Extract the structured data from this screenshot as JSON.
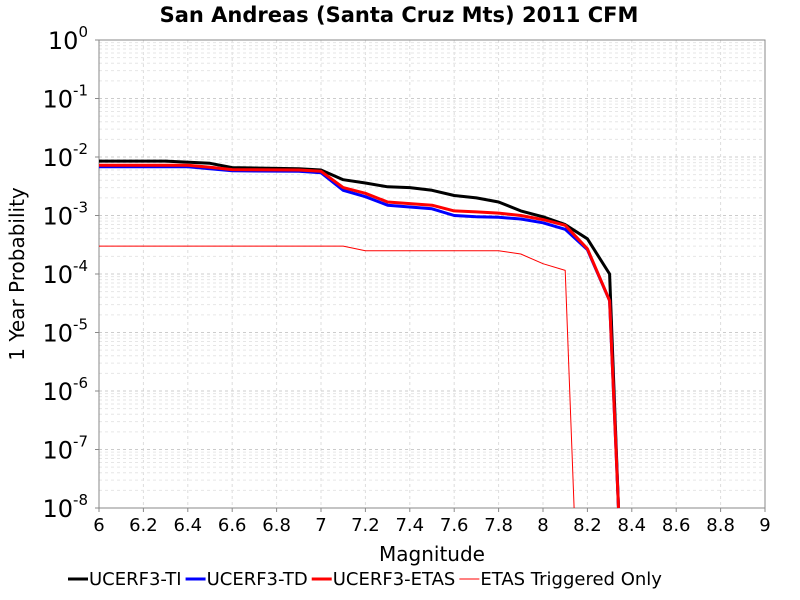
{
  "chart_data": {
    "type": "line",
    "title": "San Andreas (Santa Cruz Mts) 2011 CFM",
    "xlabel": "Magnitude",
    "ylabel": "1 Year Probability",
    "xlim": [
      6,
      9
    ],
    "ylim": [
      1e-08,
      1
    ],
    "y_scale": "log",
    "grid": true,
    "legend_position": "bottom",
    "x_ticks": [
      "6",
      "6.2",
      "6.4",
      "6.6",
      "6.8",
      "7",
      "7.2",
      "7.4",
      "7.6",
      "7.8",
      "8",
      "8.2",
      "8.4",
      "8.6",
      "8.8",
      "9"
    ],
    "y_ticks": [
      {
        "base": "10",
        "exp": "0"
      },
      {
        "base": "10",
        "exp": "-1"
      },
      {
        "base": "10",
        "exp": "-2"
      },
      {
        "base": "10",
        "exp": "-3"
      },
      {
        "base": "10",
        "exp": "-4"
      },
      {
        "base": "10",
        "exp": "-5"
      },
      {
        "base": "10",
        "exp": "-6"
      },
      {
        "base": "10",
        "exp": "-7"
      },
      {
        "base": "10",
        "exp": "-8"
      }
    ],
    "series": [
      {
        "name": "UCERF3-TI",
        "color": "#000000",
        "points": [
          [
            6.0,
            0.0085
          ],
          [
            6.3,
            0.0085
          ],
          [
            6.5,
            0.0078
          ],
          [
            6.6,
            0.0066
          ],
          [
            6.9,
            0.0063
          ],
          [
            7.0,
            0.006
          ],
          [
            7.1,
            0.0041
          ],
          [
            7.2,
            0.0036
          ],
          [
            7.3,
            0.0031
          ],
          [
            7.4,
            0.003
          ],
          [
            7.5,
            0.0027
          ],
          [
            7.6,
            0.0022
          ],
          [
            7.7,
            0.002
          ],
          [
            7.8,
            0.0017
          ],
          [
            7.9,
            0.0012
          ],
          [
            8.0,
            0.00095
          ],
          [
            8.1,
            0.0007
          ],
          [
            8.2,
            0.0004
          ],
          [
            8.3,
            0.0001
          ],
          [
            8.34,
            1e-08
          ]
        ]
      },
      {
        "name": "UCERF3-TD",
        "color": "#0000ff",
        "points": [
          [
            6.0,
            0.0068
          ],
          [
            6.4,
            0.0068
          ],
          [
            6.5,
            0.0063
          ],
          [
            6.6,
            0.0058
          ],
          [
            6.9,
            0.0057
          ],
          [
            7.0,
            0.0054
          ],
          [
            7.1,
            0.0027
          ],
          [
            7.2,
            0.0021
          ],
          [
            7.3,
            0.0015
          ],
          [
            7.4,
            0.0014
          ],
          [
            7.5,
            0.0013
          ],
          [
            7.6,
            0.001
          ],
          [
            7.7,
            0.00095
          ],
          [
            7.8,
            0.00093
          ],
          [
            7.9,
            0.00087
          ],
          [
            8.0,
            0.00075
          ],
          [
            8.1,
            0.00058
          ],
          [
            8.2,
            0.00026
          ],
          [
            8.3,
            3.5e-05
          ],
          [
            8.34,
            1e-08
          ]
        ]
      },
      {
        "name": "UCERF3-ETAS",
        "color": "#ff0000",
        "points": [
          [
            6.0,
            0.0072
          ],
          [
            6.4,
            0.0072
          ],
          [
            6.5,
            0.0067
          ],
          [
            6.6,
            0.0061
          ],
          [
            6.9,
            0.006
          ],
          [
            7.0,
            0.0057
          ],
          [
            7.1,
            0.003
          ],
          [
            7.2,
            0.0024
          ],
          [
            7.3,
            0.0017
          ],
          [
            7.4,
            0.0016
          ],
          [
            7.5,
            0.0015
          ],
          [
            7.6,
            0.0012
          ],
          [
            7.7,
            0.00115
          ],
          [
            7.8,
            0.0011
          ],
          [
            7.9,
            0.001
          ],
          [
            8.0,
            0.00085
          ],
          [
            8.1,
            0.00068
          ],
          [
            8.2,
            0.00027
          ],
          [
            8.3,
            3.5e-05
          ],
          [
            8.34,
            1e-08
          ]
        ]
      },
      {
        "name": "ETAS Triggered Only",
        "color": "#ff0000",
        "thin": true,
        "points": [
          [
            6.0,
            0.0003
          ],
          [
            7.1,
            0.0003
          ],
          [
            7.2,
            0.00025
          ],
          [
            7.8,
            0.00025
          ],
          [
            7.9,
            0.00022
          ],
          [
            8.0,
            0.00015
          ],
          [
            8.1,
            0.000115
          ],
          [
            8.14,
            1e-08
          ]
        ]
      }
    ]
  }
}
